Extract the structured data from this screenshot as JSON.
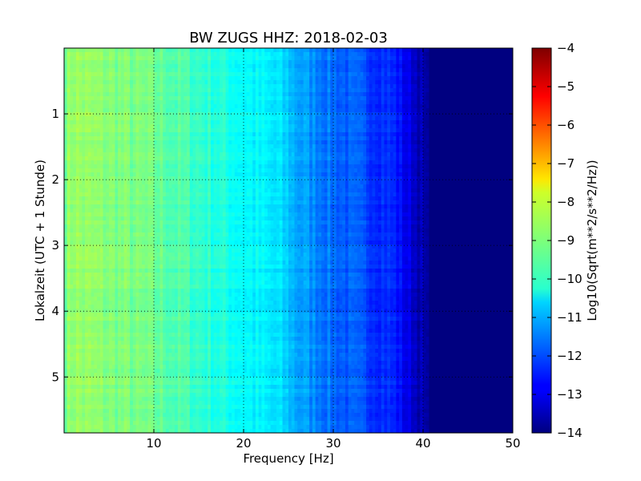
{
  "chart_data": {
    "type": "heatmap",
    "title": "BW ZUGS HHZ: 2018-02-03",
    "xlabel": "Frequency [Hz]",
    "ylabel": "Lokalzeit (UTC + 1 Stunde)",
    "xlim": [
      0,
      50
    ],
    "ylim": [
      5.85,
      0
    ],
    "xticks": [
      10,
      20,
      30,
      40,
      50
    ],
    "xtick_labels": [
      "10",
      "20",
      "30",
      "40",
      "50"
    ],
    "yticks": [
      1,
      2,
      3,
      4,
      5
    ],
    "ytick_labels": [
      "1",
      "2",
      "3",
      "4",
      "5"
    ],
    "grid": true,
    "colormap": "jet",
    "colorbar": {
      "label": "Log10(Sqrt(m**2/s**2/Hz))",
      "range": [
        -14,
        -4
      ],
      "ticks": [
        -4,
        -5,
        -6,
        -7,
        -8,
        -9,
        -10,
        -11,
        -12,
        -13,
        -14
      ],
      "tick_labels": [
        "−4",
        "−5",
        "−6",
        "−7",
        "−8",
        "−9",
        "−10",
        "−11",
        "−12",
        "−13",
        "−14"
      ]
    },
    "frequency_profile": {
      "frequency_hz": [
        0,
        1,
        2,
        4,
        6,
        8,
        10,
        12,
        14,
        16,
        18,
        20,
        22,
        24,
        25,
        26,
        28,
        30,
        32,
        34,
        36,
        37,
        38,
        39,
        40,
        40.5,
        41,
        50
      ],
      "log10_amplitude": [
        -9.1,
        -8.7,
        -8.8,
        -8.9,
        -9.0,
        -9.1,
        -9.2,
        -9.4,
        -9.6,
        -9.8,
        -10.0,
        -10.2,
        -10.4,
        -10.6,
        -10.8,
        -11.1,
        -11.4,
        -11.7,
        -11.9,
        -12.1,
        -12.3,
        -12.5,
        -12.9,
        -13.2,
        -13.6,
        -13.9,
        -14.0,
        -14.0
      ]
    }
  }
}
